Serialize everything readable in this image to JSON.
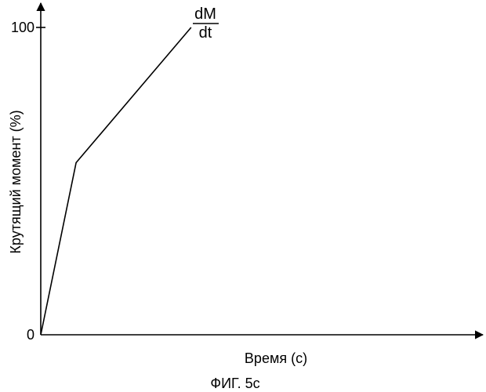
{
  "figure_label": "ФИГ. 5с",
  "chart_data": {
    "type": "line",
    "xlabel": "Время (с)",
    "ylabel": "Крутящий момент (%)",
    "y_ticks": [
      {
        "value": 0,
        "label": "0"
      },
      {
        "value": 100,
        "label": "100"
      }
    ],
    "ylim": [
      0,
      100
    ],
    "xlim": [
      0,
      10
    ],
    "grid": false,
    "series": [
      {
        "values": [
          {
            "x": 0,
            "y": 0
          },
          {
            "x": 0.8,
            "y": 56
          },
          {
            "x": 3.4,
            "y": 100
          }
        ]
      }
    ],
    "annotation": {
      "numerator": "dM",
      "denominator": "dt"
    },
    "colors": {
      "line": "#000000",
      "axis": "#000000"
    }
  }
}
